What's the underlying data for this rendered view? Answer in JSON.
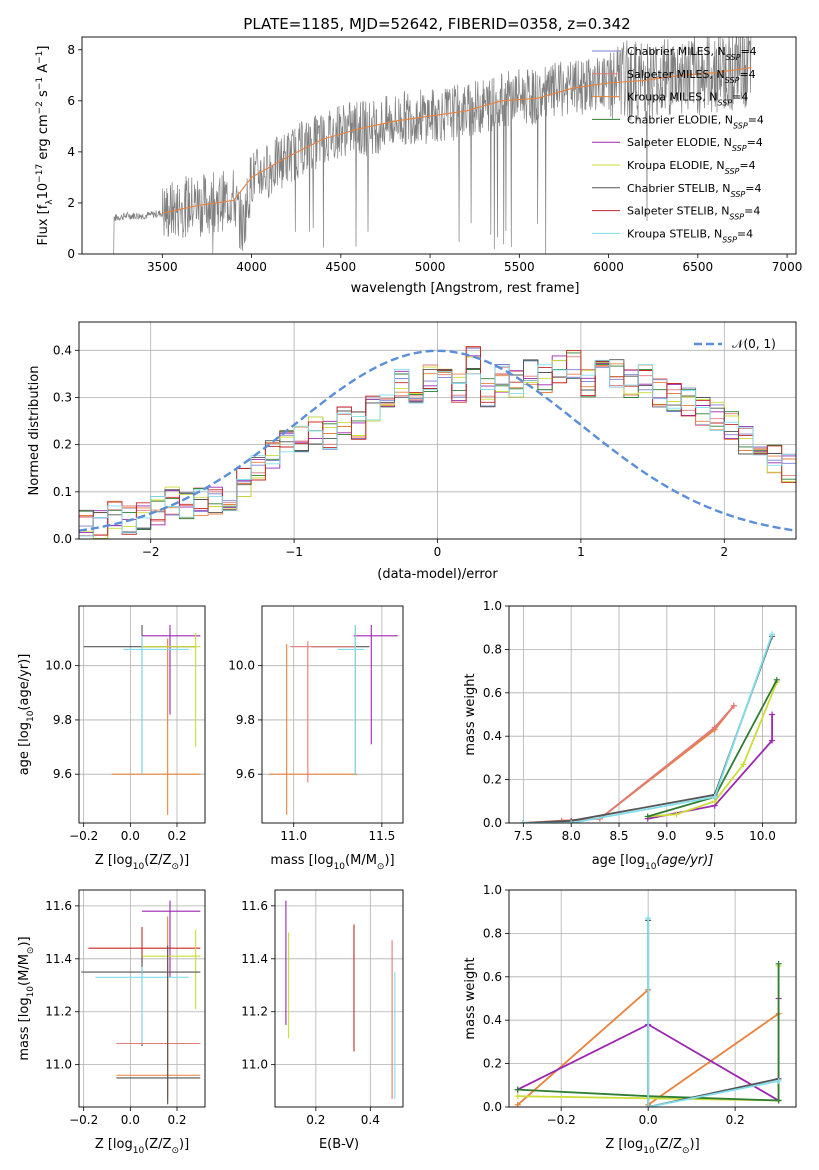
{
  "page": {
    "title": "PLATE=1185, MJD=52642, FIBERID=0358, z=0.342"
  },
  "legend_entries": [
    {
      "label": "Chabrier MILES, N",
      "sub": "SSP",
      "suffix": "=4",
      "color": "#7b7fd3"
    },
    {
      "label": "Salpeter MILES, N",
      "sub": "SSP",
      "suffix": "=4",
      "color": "#e27a7a"
    },
    {
      "label": "Kroupa MILES, N",
      "sub": "SSP",
      "suffix": "=4",
      "color": "#e8823d"
    },
    {
      "label": "Chabrier ELODIE, N",
      "sub": "SSP",
      "suffix": "=4",
      "color": "#2e7d32"
    },
    {
      "label": "Salpeter ELODIE, N",
      "sub": "SSP",
      "suffix": "=4",
      "color": "#9c27b0"
    },
    {
      "label": "Kroupa ELODIE, N",
      "sub": "SSP",
      "suffix": "=4",
      "color": "#cddc39"
    },
    {
      "label": "Chabrier STELIB, N",
      "sub": "SSP",
      "suffix": "=4",
      "color": "#555555"
    },
    {
      "label": "Salpeter STELIB, N",
      "sub": "SSP",
      "suffix": "=4",
      "color": "#c62828"
    },
    {
      "label": "Kroupa STELIB, N",
      "sub": "SSP",
      "suffix": "=4",
      "color": "#80deea"
    }
  ],
  "chart_data": [
    {
      "id": "spectrum",
      "type": "line",
      "ylabel": "Flux [f",
      "ylabel_parts": [
        "Flux [f",
        "λ",
        "10",
        "−17",
        " erg cm",
        "−2",
        " s",
        "−1",
        " A",
        "−1",
        "]"
      ],
      "xlabel": "wavelength [Angstrom, rest frame]",
      "xlim": [
        3050,
        7050
      ],
      "ylim": [
        0,
        8.5
      ],
      "xticks": [
        3500,
        4000,
        4500,
        5000,
        5500,
        6000,
        6500,
        7000
      ],
      "yticks": [
        0,
        2,
        4,
        6,
        8
      ],
      "grid": false,
      "legend_placement": "top-right",
      "series": [
        {
          "name": "data",
          "color": "#808080",
          "x": [
            3210,
            3230,
            3300,
            3400,
            3500,
            3600,
            3700,
            3800,
            3900,
            3950,
            4000,
            4100,
            4200,
            4300,
            4400,
            4500,
            4600,
            4700,
            4800,
            4900,
            5000,
            5100,
            5200,
            5300,
            5400,
            5500,
            5600,
            5700,
            5800,
            5900,
            6000,
            6100,
            6200,
            6300,
            6400,
            6500,
            6600,
            6700,
            6800
          ],
          "y": [
            0,
            1.4,
            1.5,
            1.5,
            1.6,
            1.8,
            2.0,
            2.0,
            2.2,
            1.0,
            3.0,
            3.3,
            3.8,
            4.2,
            4.5,
            4.9,
            4.9,
            5.0,
            5.2,
            5.4,
            5.4,
            5.5,
            5.6,
            5.8,
            6.0,
            6.2,
            6.1,
            6.4,
            6.5,
            6.6,
            6.7,
            6.8,
            6.8,
            6.9,
            7.0,
            7.0,
            7.1,
            7.2,
            7.3
          ]
        },
        {
          "name": "model",
          "color": "#e8823d",
          "x": [
            3500,
            3700,
            3900,
            4000,
            4200,
            4400,
            4600,
            4800,
            5000,
            5200,
            5400,
            5600,
            5800,
            6000,
            6200,
            6400,
            6600,
            6800
          ],
          "y": [
            1.6,
            1.9,
            2.1,
            3.0,
            3.8,
            4.5,
            4.9,
            5.2,
            5.4,
            5.6,
            6.0,
            6.1,
            6.5,
            6.7,
            6.8,
            7.0,
            7.1,
            7.3
          ]
        }
      ]
    },
    {
      "id": "residuals",
      "type": "line",
      "xlabel": "(data-model)/error",
      "ylabel": "Normed distribution",
      "xlim": [
        -2.5,
        2.5
      ],
      "ylim": [
        0,
        0.46
      ],
      "xticks": [
        -2,
        -1,
        0,
        1,
        2
      ],
      "yticks": [
        0.0,
        0.1,
        0.2,
        0.3,
        0.4
      ],
      "grid": true,
      "legend_placement": "top-right",
      "legend_label": "𝒩(0, 1)",
      "gaussian": {
        "mean": 0,
        "sigma": 1,
        "color": "#5b8fd9"
      },
      "histogram": {
        "bin_width": 0.1,
        "x_start": -2.5,
        "values": [
          0.035,
          0.03,
          0.05,
          0.04,
          0.05,
          0.06,
          0.08,
          0.07,
          0.08,
          0.08,
          0.09,
          0.12,
          0.15,
          0.18,
          0.2,
          0.21,
          0.23,
          0.22,
          0.25,
          0.24,
          0.28,
          0.31,
          0.33,
          0.3,
          0.34,
          0.33,
          0.32,
          0.38,
          0.31,
          0.34,
          0.33,
          0.35,
          0.34,
          0.36,
          0.37,
          0.33,
          0.36,
          0.35,
          0.33,
          0.34,
          0.31,
          0.3,
          0.29,
          0.27,
          0.26,
          0.24,
          0.21,
          0.2,
          0.17,
          0.15
        ]
      }
    },
    {
      "id": "age_z",
      "type": "scatter",
      "xlabel": "Z [log",
      "xlabel_parts": [
        "Z [log",
        "10",
        "(Z/Z",
        "⊙",
        ")]"
      ],
      "ylabel": "age  [log",
      "ylabel_parts": [
        "age  [log",
        "10",
        "(age/yr)]"
      ],
      "xlim": [
        -0.22,
        0.32
      ],
      "ylim": [
        9.42,
        10.22
      ],
      "xticks": [
        -0.2,
        0.0,
        0.2
      ],
      "yticks": [
        9.6,
        9.8,
        10.0
      ],
      "grid": true,
      "points": [
        {
          "x": 0.05,
          "y": 10.07,
          "xerr": [
            0.25,
            0.23
          ],
          "yerr": [
            0.47,
            0.08
          ],
          "color": "#555555"
        },
        {
          "x": 0.16,
          "y": 9.6,
          "xerr": [
            0.24,
            0.14
          ],
          "yerr": [
            0.15,
            0.5
          ],
          "color": "#e8823d"
        },
        {
          "x": 0.17,
          "y": 10.11,
          "xerr": [
            0.12,
            0.13
          ],
          "yerr": [
            0.29,
            0.04
          ],
          "color": "#9c27b0"
        },
        {
          "x": 0.28,
          "y": 10.07,
          "xerr": [
            0.23,
            0.02
          ],
          "yerr": [
            0.37,
            0.05
          ],
          "color": "#cddc39"
        },
        {
          "x": 0.05,
          "y": 10.06,
          "xerr": [
            0.08,
            0.2
          ],
          "yerr": [
            0.46,
            0.05
          ],
          "color": "#80deea"
        }
      ]
    },
    {
      "id": "age_mass",
      "type": "scatter",
      "xlabel": "mass [log",
      "xlabel_parts": [
        "mass [log",
        "10",
        "(M/M",
        "⊙",
        ")]"
      ],
      "xlim": [
        10.82,
        11.62
      ],
      "ylim": [
        9.42,
        10.22
      ],
      "xticks": [
        11.0,
        11.5
      ],
      "yticks": [
        9.6,
        9.8,
        10.0
      ],
      "grid": true,
      "points": [
        {
          "x": 10.96,
          "y": 9.6,
          "xerr": [
            0.1,
            0.4
          ],
          "yerr": [
            0.15,
            0.48
          ],
          "color": "#e8823d"
        },
        {
          "x": 11.35,
          "y": 10.07,
          "xerr": [
            0.25,
            0.08
          ],
          "yerr": [
            0.47,
            0.08
          ],
          "color": "#555555"
        },
        {
          "x": 11.44,
          "y": 10.11,
          "xerr": [
            0.1,
            0.15
          ],
          "yerr": [
            0.4,
            0.04
          ],
          "color": "#9c27b0"
        },
        {
          "x": 11.08,
          "y": 10.07,
          "xerr": [
            0.1,
            0.27
          ],
          "yerr": [
            0.5,
            0.02
          ],
          "color": "#e27a7a"
        },
        {
          "x": 11.35,
          "y": 10.06,
          "xerr": [
            0.1,
            0.05
          ],
          "yerr": [
            0.46,
            0.09
          ],
          "color": "#80deea"
        }
      ]
    },
    {
      "id": "mw_age",
      "type": "line",
      "xlabel": "age  [log",
      "xlabel_parts": [
        "age  [log",
        "10",
        "(age/yr)]"
      ],
      "ylabel": "mass weight",
      "xlim": [
        7.35,
        10.35
      ],
      "ylim": [
        0,
        1.0
      ],
      "xticks": [
        7.5,
        8.0,
        8.5,
        9.0,
        9.5,
        10.0
      ],
      "yticks": [
        0.0,
        0.2,
        0.4,
        0.6,
        0.8,
        1.0
      ],
      "grid": true,
      "series": [
        {
          "color": "#e8823d",
          "x": [
            7.5,
            7.9,
            8.3,
            9.5,
            9.7
          ],
          "y": [
            0.0,
            0.01,
            0.02,
            0.43,
            0.54
          ]
        },
        {
          "color": "#e27a7a",
          "x": [
            7.5,
            7.9,
            8.3,
            9.5,
            9.7
          ],
          "y": [
            0.0,
            0.01,
            0.02,
            0.44,
            0.54
          ]
        },
        {
          "color": "#9c27b0",
          "x": [
            8.8,
            9.5,
            10.1,
            10.1
          ],
          "y": [
            0.02,
            0.08,
            0.38,
            0.5
          ]
        },
        {
          "color": "#cddc39",
          "x": [
            8.8,
            9.1,
            9.5,
            9.8,
            10.15
          ],
          "y": [
            0.03,
            0.04,
            0.1,
            0.27,
            0.65
          ]
        },
        {
          "color": "#2e7d32",
          "x": [
            8.8,
            9.5,
            10.15
          ],
          "y": [
            0.03,
            0.12,
            0.66
          ]
        },
        {
          "color": "#555555",
          "x": [
            7.5,
            8.0,
            9.5,
            10.1
          ],
          "y": [
            0.0,
            0.01,
            0.13,
            0.86
          ]
        },
        {
          "color": "#80deea",
          "x": [
            7.5,
            8.0,
            9.5,
            10.1
          ],
          "y": [
            0.0,
            0.0,
            0.12,
            0.87
          ]
        }
      ]
    },
    {
      "id": "mass_z",
      "type": "scatter",
      "xlabel": "Z [log",
      "xlabel_parts": [
        "Z [log",
        "10",
        "(Z/Z",
        "⊙",
        ")]"
      ],
      "ylabel": "mass [log",
      "ylabel_parts": [
        "mass [log",
        "10",
        "(M/M",
        "⊙",
        ")]"
      ],
      "xlim": [
        -0.22,
        0.32
      ],
      "ylim": [
        10.84,
        11.66
      ],
      "xticks": [
        -0.2,
        0.0,
        0.2
      ],
      "yticks": [
        11.0,
        11.2,
        11.4,
        11.6
      ],
      "grid": true,
      "points": [
        {
          "x": 0.17,
          "y": 11.58,
          "xerr": [
            0.12,
            0.13
          ],
          "yerr": [
            0.25,
            0.04
          ],
          "color": "#9c27b0"
        },
        {
          "x": 0.05,
          "y": 11.44,
          "xerr": [
            0.23,
            0.25
          ],
          "yerr": [
            0.1,
            0.08
          ],
          "color": "#c62828"
        },
        {
          "x": 0.28,
          "y": 11.41,
          "xerr": [
            0.23,
            0.02
          ],
          "yerr": [
            0.2,
            0.1
          ],
          "color": "#cddc39"
        },
        {
          "x": 0.05,
          "y": 11.35,
          "xerr": [
            0.26,
            0.25
          ],
          "yerr": [
            0.28,
            0.06
          ],
          "color": "#555555"
        },
        {
          "x": 0.05,
          "y": 11.33,
          "xerr": [
            0.2,
            0.2
          ],
          "yerr": [
            0.25,
            0.04
          ],
          "color": "#80deea"
        },
        {
          "x": 0.16,
          "y": 11.08,
          "xerr": [
            0.22,
            0.14
          ],
          "yerr": [
            0.2,
            0.3
          ],
          "color": "#e27a7a"
        },
        {
          "x": 0.16,
          "y": 10.96,
          "xerr": [
            0.22,
            0.14
          ],
          "yerr": [
            0.1,
            0.6
          ],
          "color": "#e8823d"
        },
        {
          "x": 0.16,
          "y": 10.95,
          "xerr": [
            0.22,
            0.14
          ],
          "yerr": [
            0.1,
            0.5
          ],
          "color": "#555555"
        }
      ]
    },
    {
      "id": "mass_ebv",
      "type": "scatter",
      "xlabel": "E(B-V)",
      "xlim": [
        0.05,
        0.52
      ],
      "ylim": [
        10.84,
        11.66
      ],
      "xticks": [
        0.2,
        0.4
      ],
      "yticks": [
        11.0,
        11.2,
        11.4,
        11.6
      ],
      "grid": true,
      "points": [
        {
          "x": 0.09,
          "y": 11.45,
          "xerr": [
            0,
            0
          ],
          "yerr": [
            0.3,
            0.17
          ],
          "color": "#9c27b0"
        },
        {
          "x": 0.1,
          "y": 11.35,
          "xerr": [
            0,
            0
          ],
          "yerr": [
            0.25,
            0.15
          ],
          "color": "#cddc39"
        },
        {
          "x": 0.34,
          "y": 11.35,
          "xerr": [
            0,
            0
          ],
          "yerr": [
            0.3,
            0.18
          ],
          "color": "#c62828"
        },
        {
          "x": 0.48,
          "y": 11.2,
          "xerr": [
            0,
            0
          ],
          "yerr": [
            0.33,
            0.27
          ],
          "color": "#e27a7a"
        },
        {
          "x": 0.49,
          "y": 11.1,
          "xerr": [
            0,
            0
          ],
          "yerr": [
            0.23,
            0.25
          ],
          "color": "#80deea"
        }
      ]
    },
    {
      "id": "mw_z",
      "type": "line",
      "xlabel": "Z [log",
      "xlabel_parts": [
        "Z [log",
        "10",
        "(Z/Z",
        "⊙",
        ")]"
      ],
      "ylabel": "mass weight",
      "xlim": [
        -0.32,
        0.34
      ],
      "ylim": [
        0,
        1.0
      ],
      "xticks": [
        -0.2,
        0.0,
        0.2
      ],
      "yticks": [
        0.0,
        0.2,
        0.4,
        0.6,
        0.8,
        1.0
      ],
      "grid": true,
      "series": [
        {
          "color": "#e8823d",
          "x": [
            -0.3,
            0.0,
            0.0,
            0.3
          ],
          "y": [
            0.01,
            0.54,
            0.01,
            0.43
          ]
        },
        {
          "color": "#9c27b0",
          "x": [
            -0.3,
            0.0,
            0.3,
            0.3
          ],
          "y": [
            0.08,
            0.38,
            0.03,
            0.5
          ]
        },
        {
          "color": "#cddc39",
          "x": [
            -0.3,
            0.0,
            0.3,
            0.3
          ],
          "y": [
            0.05,
            0.04,
            0.03,
            0.65
          ]
        },
        {
          "color": "#2e7d32",
          "x": [
            -0.3,
            0.0,
            0.3,
            0.3
          ],
          "y": [
            0.08,
            0.05,
            0.03,
            0.66
          ]
        },
        {
          "color": "#555555",
          "x": [
            0.0,
            0.0,
            0.3
          ],
          "y": [
            0.86,
            0.0,
            0.13
          ]
        },
        {
          "color": "#80deea",
          "x": [
            0.0,
            0.0,
            0.3
          ],
          "y": [
            0.87,
            0.0,
            0.12
          ]
        }
      ]
    }
  ]
}
